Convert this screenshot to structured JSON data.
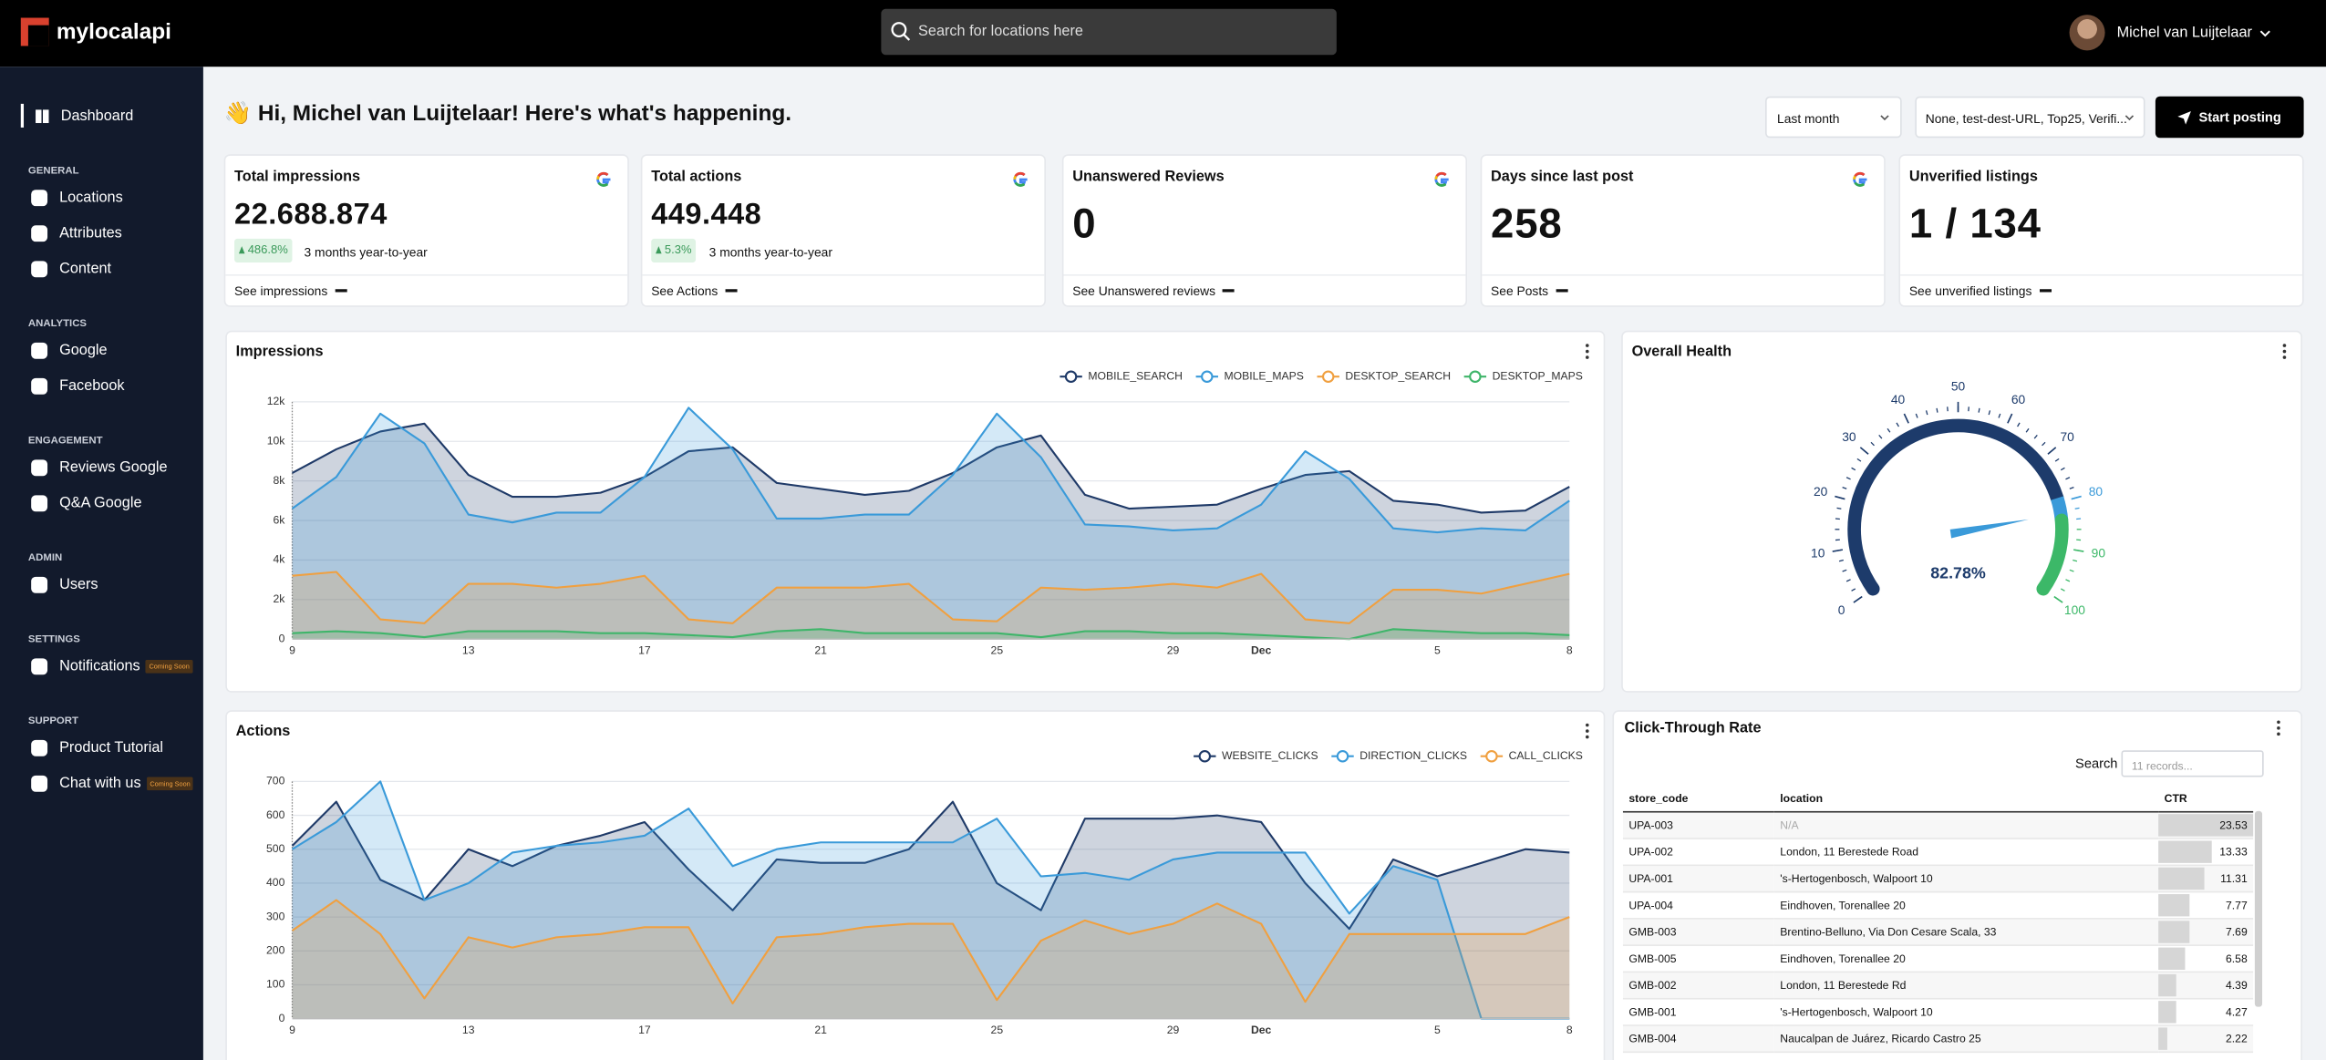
{
  "header": {
    "logo": "mylocalapi",
    "search_placeholder": "Search for locations here",
    "user_name": "Michel van Luijtelaar"
  },
  "sidebar": {
    "active": "Dashboard",
    "groups": [
      {
        "title": "GENERAL",
        "items": [
          {
            "label": "Locations"
          },
          {
            "label": "Attributes"
          },
          {
            "label": "Content"
          }
        ]
      },
      {
        "title": "ANALYTICS",
        "items": [
          {
            "label": "Google"
          },
          {
            "label": "Facebook"
          }
        ]
      },
      {
        "title": "ENGAGEMENT",
        "items": [
          {
            "label": "Reviews Google"
          },
          {
            "label": "Q&A Google"
          }
        ]
      },
      {
        "title": "ADMIN",
        "items": [
          {
            "label": "Users"
          }
        ]
      },
      {
        "title": "SETTINGS",
        "items": [
          {
            "label": "Notifications",
            "badge": "Coming Soon"
          }
        ]
      },
      {
        "title": "SUPPORT",
        "items": [
          {
            "label": "Product Tutorial"
          },
          {
            "label": "Chat with us",
            "badge": "Coming Soon"
          }
        ]
      }
    ]
  },
  "greeting": "👋 Hi, Michel van Luijtelaar! Here's what's happening.",
  "filters": {
    "period": "Last month",
    "labels": "None, test-dest-URL, Top25, Verifi...",
    "button": "Start posting"
  },
  "kpis": [
    {
      "title": "Total impressions",
      "value": "22.688.874",
      "change": "486.8%",
      "period": "3 months year-to-year",
      "link": "See impressions",
      "google": true
    },
    {
      "title": "Total actions",
      "value": "449.448",
      "change": "5.3%",
      "period": "3 months year-to-year",
      "link": "See Actions",
      "google": true
    },
    {
      "title": "Unanswered Reviews",
      "value": "0",
      "link": "See Unanswered reviews",
      "google": true
    },
    {
      "title": "Days since last post",
      "value": "258",
      "link": "See Posts",
      "google": true
    },
    {
      "title": "Unverified listings",
      "value": "1 / 134",
      "link": "See unverified listings",
      "google": false
    }
  ],
  "chart_data": [
    {
      "type": "area",
      "title": "Impressions",
      "grid": true,
      "legend": "top-right",
      "categories": [
        "9",
        null,
        null,
        null,
        "13",
        null,
        null,
        null,
        "17",
        null,
        null,
        null,
        "21",
        null,
        null,
        null,
        "25",
        null,
        null,
        null,
        "29",
        null,
        "Dec",
        null,
        null,
        null,
        "5",
        null,
        null,
        "8"
      ],
      "ylim": [
        0,
        12000
      ],
      "yticks": [
        0,
        {
          "value": 2000,
          "label": "2k"
        },
        {
          "value": 4000,
          "label": "4k"
        },
        {
          "value": 6000,
          "label": "6k"
        },
        {
          "value": 8000,
          "label": "8k"
        },
        {
          "value": 10000,
          "label": "10k"
        },
        {
          "value": 12000,
          "label": "12k"
        }
      ],
      "series": [
        {
          "name": "MOBILE_SEARCH",
          "color": "#1f3a68",
          "values": [
            8400,
            9600,
            10500,
            10900,
            8300,
            7200,
            7200,
            7400,
            8200,
            9500,
            9700,
            7900,
            7600,
            7300,
            7500,
            8400,
            9700,
            10300,
            7300,
            6600,
            6700,
            6800,
            7600,
            8300,
            8500,
            7000,
            6800,
            6400,
            6500,
            7700
          ]
        },
        {
          "name": "MOBILE_MAPS",
          "color": "#3a9ad9",
          "values": [
            6600,
            8200,
            11400,
            9900,
            6300,
            5900,
            6400,
            6400,
            8200,
            11700,
            9600,
            6100,
            6100,
            6300,
            6300,
            8300,
            11400,
            9200,
            5800,
            5700,
            5500,
            5600,
            6800,
            9500,
            8100,
            5600,
            5400,
            5600,
            5500,
            7000
          ]
        },
        {
          "name": "DESKTOP_SEARCH",
          "color": "#f0a040",
          "values": [
            3200,
            3400,
            1000,
            800,
            2800,
            2800,
            2600,
            2800,
            3200,
            1000,
            800,
            2600,
            2600,
            2600,
            2800,
            1000,
            900,
            2600,
            2500,
            2600,
            2800,
            2600,
            3300,
            1000,
            800,
            2500,
            2500,
            2300,
            2800,
            3300
          ]
        },
        {
          "name": "DESKTOP_MAPS",
          "color": "#3fb56a",
          "values": [
            300,
            400,
            300,
            100,
            400,
            400,
            400,
            300,
            300,
            200,
            100,
            400,
            500,
            300,
            300,
            300,
            300,
            100,
            400,
            400,
            300,
            300,
            200,
            100,
            0,
            500,
            400,
            300,
            300,
            200
          ]
        }
      ]
    },
    {
      "type": "area",
      "title": "Actions",
      "grid": true,
      "legend": "top-right",
      "categories": [
        "9",
        null,
        null,
        null,
        "13",
        null,
        null,
        null,
        "17",
        null,
        null,
        null,
        "21",
        null,
        null,
        null,
        "25",
        null,
        null,
        null,
        "29",
        null,
        "Dec",
        null,
        null,
        null,
        "5",
        null,
        null,
        "8"
      ],
      "ylim": [
        0,
        700
      ],
      "yticks": [
        0,
        100,
        200,
        300,
        400,
        500,
        600,
        700
      ],
      "series": [
        {
          "name": "WEBSITE_CLICKS",
          "color": "#1f3a68",
          "values": [
            510,
            640,
            410,
            350,
            500,
            450,
            510,
            540,
            580,
            440,
            320,
            470,
            460,
            460,
            500,
            640,
            400,
            320,
            590,
            590,
            590,
            600,
            580,
            400,
            265,
            470,
            420,
            460,
            500,
            490
          ]
        },
        {
          "name": "DIRECTION_CLICKS",
          "color": "#3a9ad9",
          "values": [
            500,
            580,
            700,
            350,
            400,
            490,
            510,
            520,
            540,
            620,
            450,
            500,
            520,
            520,
            520,
            520,
            590,
            420,
            430,
            410,
            470,
            490,
            490,
            490,
            310,
            450,
            410,
            0,
            0,
            0
          ]
        },
        {
          "name": "CALL_CLICKS",
          "color": "#f0a040",
          "values": [
            260,
            350,
            250,
            60,
            240,
            210,
            240,
            250,
            270,
            270,
            45,
            240,
            250,
            270,
            280,
            280,
            55,
            230,
            290,
            250,
            280,
            340,
            280,
            50,
            250,
            250,
            250,
            250,
            250,
            300
          ]
        }
      ]
    },
    {
      "type": "gauge",
      "title": "Overall Health",
      "value": 82.78,
      "value_label": "82.78%",
      "range": [
        0,
        100
      ],
      "ticks": [
        0,
        10,
        20,
        30,
        40,
        50,
        60,
        70,
        80,
        90,
        100
      ],
      "bands": [
        {
          "from": 0,
          "to": 79,
          "color": "#1d3b6b"
        },
        {
          "from": 79,
          "to": 84,
          "color": "#3a9ad9"
        },
        {
          "from": 84,
          "to": 100,
          "color": "#3cb868"
        }
      ]
    }
  ],
  "ctr_table": {
    "title": "Click-Through Rate",
    "search_label": "Search",
    "search_placeholder": "11 records...",
    "columns": [
      "store_code",
      "location",
      "CTR"
    ],
    "rows": [
      [
        "UPA-003",
        "N/A",
        23.53
      ],
      [
        "UPA-002",
        "London, 11 Berestede Road",
        13.33
      ],
      [
        "UPA-001",
        "'s-Hertogenbosch, Walpoort 10",
        11.31
      ],
      [
        "UPA-004",
        "Eindhoven, Torenallee 20",
        7.77
      ],
      [
        "GMB-003",
        "Brentino-Belluno, Via Don Cesare Scala, 33",
        7.69
      ],
      [
        "GMB-005",
        "Eindhoven, Torenallee 20",
        6.58
      ],
      [
        "GMB-002",
        "London, 11 Berestede Rd",
        4.39
      ],
      [
        "GMB-001",
        "'s-Hertogenbosch, Walpoort 10",
        4.27
      ],
      [
        "GMB-004",
        "Naucalpan de Juárez, Ricardo Castro 25",
        2.22
      ]
    ]
  }
}
